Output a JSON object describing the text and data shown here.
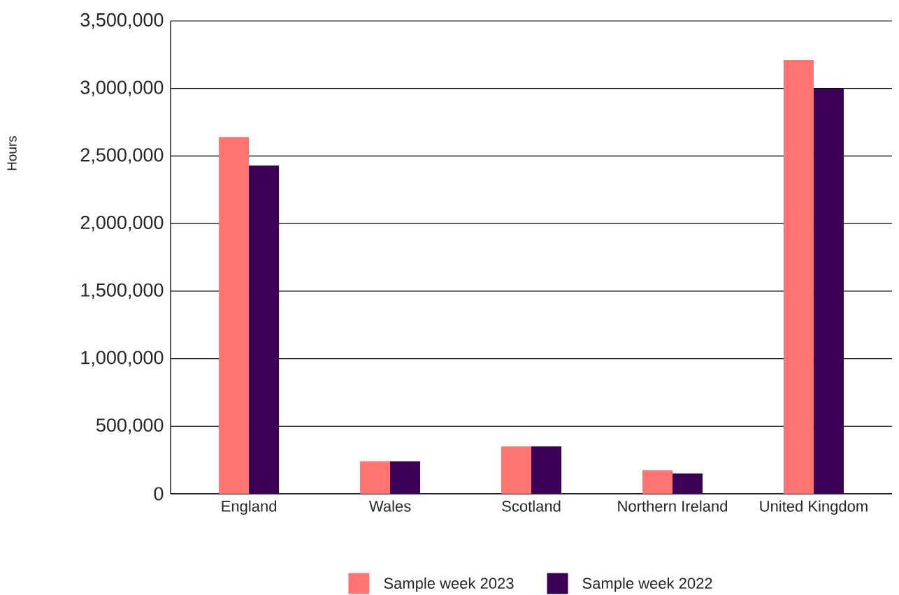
{
  "chart_data": {
    "type": "bar",
    "ylabel": "Hours",
    "categories": [
      "England",
      "Wales",
      "Scotland",
      "Northern Ireland",
      "United Kingdom"
    ],
    "series": [
      {
        "name": "Sample week 2023",
        "color": "#ff7370",
        "values": [
          2640000,
          240000,
          350000,
          175000,
          3210000
        ]
      },
      {
        "name": "Sample week 2022",
        "color": "#3d0057",
        "values": [
          2430000,
          240000,
          350000,
          150000,
          3000000
        ]
      }
    ],
    "ylim": [
      0,
      3500000
    ],
    "yticks": [
      0,
      {
        "value": 500000,
        "label": "500,000"
      },
      {
        "value": 1000000,
        "label": "1,000,000"
      },
      {
        "value": 1500000,
        "label": "1,500,000"
      },
      {
        "value": 2000000,
        "label": "2,000,000"
      },
      {
        "value": 2500000,
        "label": "2,500,000"
      },
      {
        "value": 3000000,
        "label": "3,000,000"
      },
      {
        "value": 3500000,
        "label": "3,500,000"
      }
    ],
    "grid": "y",
    "legend": "bottom"
  }
}
